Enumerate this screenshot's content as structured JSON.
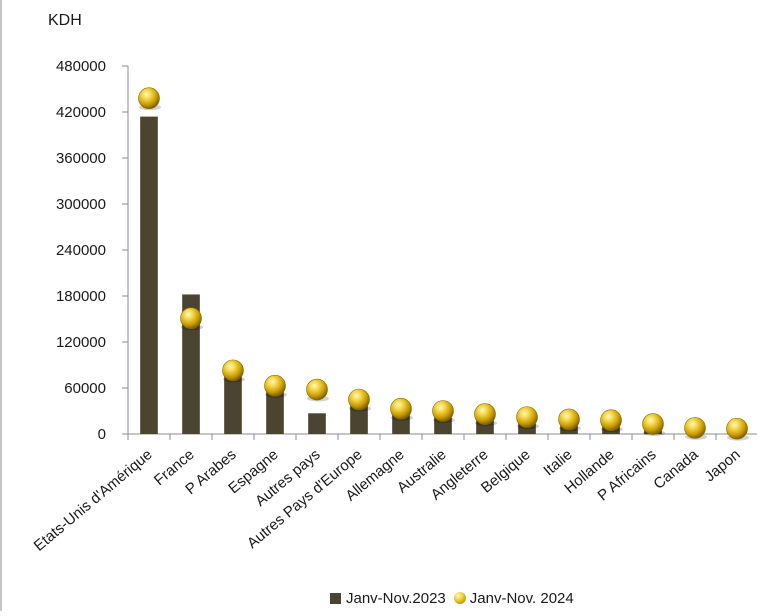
{
  "chart_data": {
    "type": "bar",
    "unit_label": "KDH",
    "categories": [
      "Etats-Unis d'Amérique",
      "France",
      "P Arabes",
      "Espagne",
      "Autres pays",
      "Autres Pays d'Europe",
      "Allemagne",
      "Australie",
      "Angleterre",
      "Belgique",
      "Italie",
      "Hollande",
      "P Africains",
      "Canada",
      "Japon"
    ],
    "series": [
      {
        "name": "Janv-Nov.2023",
        "kind": "bar",
        "color": "#4b4430",
        "values": [
          414000,
          182000,
          80000,
          60000,
          27000,
          40000,
          30000,
          28000,
          24000,
          20000,
          17000,
          15000,
          11000,
          7000,
          5000
        ]
      },
      {
        "name": "Janv-Nov. 2024",
        "kind": "marker",
        "color": "#e0b400",
        "values": [
          438000,
          151000,
          83000,
          63000,
          58000,
          45000,
          33000,
          30000,
          26000,
          22000,
          19000,
          18000,
          13000,
          8000,
          7000
        ]
      }
    ],
    "yticks": [
      0,
      60000,
      120000,
      180000,
      240000,
      300000,
      360000,
      420000,
      480000
    ],
    "ylim": [
      0,
      480000
    ],
    "grid": false,
    "legend_position": "bottom"
  }
}
